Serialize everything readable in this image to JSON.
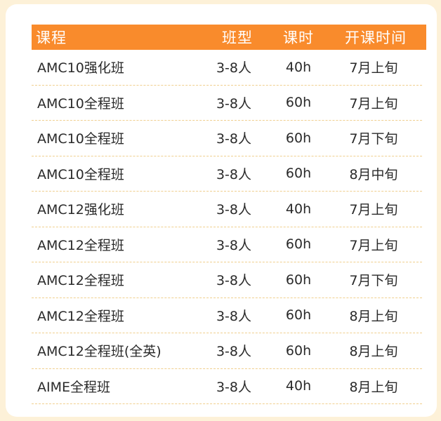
{
  "table": {
    "headers": [
      "课程",
      "班型",
      "课时",
      "开课时间"
    ],
    "rows": [
      [
        "AMC10强化班",
        "3-8人",
        "40h",
        "7月上旬"
      ],
      [
        "AMC10全程班",
        "3-8人",
        "60h",
        "7月上旬"
      ],
      [
        "AMC10全程班",
        "3-8人",
        "60h",
        "7月下旬"
      ],
      [
        "AMC10全程班",
        "3-8人",
        "60h",
        "8月中旬"
      ],
      [
        "AMC12强化班",
        "3-8人",
        "40h",
        "7月上旬"
      ],
      [
        "AMC12全程班",
        "3-8人",
        "60h",
        "7月上旬"
      ],
      [
        "AMC12全程班",
        "3-8人",
        "60h",
        "7月下旬"
      ],
      [
        "AMC12全程班",
        "3-8人",
        "60h",
        "8月上旬"
      ],
      [
        "AMC12全程班(全英)",
        "3-8人",
        "60h",
        "8月上旬"
      ],
      [
        "AIME全程班",
        "3-8人",
        "40h",
        "8月上旬"
      ]
    ]
  },
  "colors": {
    "background": "#fdf1d8",
    "header": "#f98b2c",
    "divider": "#f0cf8e"
  }
}
